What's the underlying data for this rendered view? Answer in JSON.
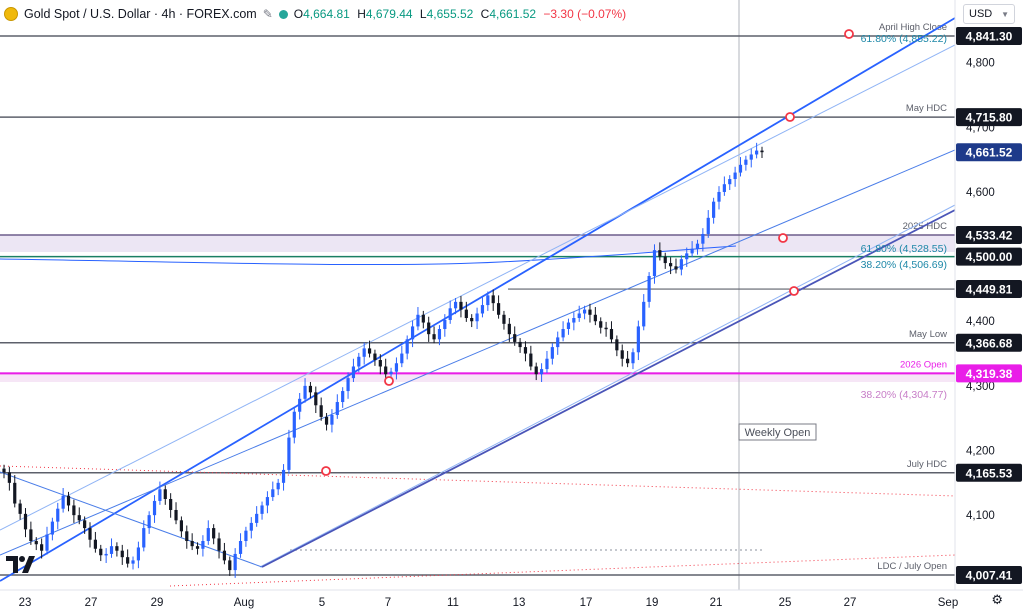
{
  "header": {
    "title": "Gold Spot / U.S. Dollar · 4h · FOREX.com",
    "open_label": "O",
    "open": "4,664.81",
    "high_label": "H",
    "high": "4,679.44",
    "low_label": "L",
    "low": "4,655.52",
    "close_label": "C",
    "close": "4,661.52",
    "change": "−3.30 (−0.07%)"
  },
  "currency": "USD",
  "colors": {
    "up": "#2962ff",
    "down": "#131722",
    "channel": "#2962ff",
    "channel_light": "#90b4f5",
    "level": "#787b86",
    "magenta": "#e91ee8",
    "zone": "#e6e0f0",
    "zone_pink": "#f6e6f6",
    "marker": "#f23645",
    "price_tag": "#131722",
    "fib_label": "#2962ff"
  },
  "chart_data": {
    "type": "candlestick",
    "instrument": "XAU/USD",
    "timeframe": "4h",
    "ylim": [
      3995,
      4895
    ],
    "yticks": [
      4100,
      4200,
      4300,
      4400,
      4500,
      4600,
      4700,
      4800
    ],
    "x_ticks": [
      "23",
      "27",
      "29",
      "Aug",
      "5",
      "7",
      "11",
      "13",
      "17",
      "19",
      "21",
      "25",
      "27",
      "Sep"
    ],
    "levels": [
      {
        "label": "April High Close",
        "price": 4841.3,
        "tag": "4,841.30"
      },
      {
        "label": "May HDC",
        "price": 4715.8,
        "tag": "4,715.80"
      },
      {
        "label": "2025 HDC",
        "price": 4533.42,
        "tag": "4,533.42"
      },
      {
        "label": "",
        "price": 4500.0,
        "tag": "4,500.00"
      },
      {
        "label": "",
        "price": 4449.81,
        "tag": "4,449.81"
      },
      {
        "label": "May Low",
        "price": 4366.68,
        "tag": "4,366.68"
      },
      {
        "label": "2026 Open",
        "price": 4319.38,
        "tag": "4,319.38"
      },
      {
        "label": "July HDC",
        "price": 4165.53,
        "tag": "4,165.53"
      },
      {
        "label": "LDC / July Open",
        "price": 4007.41,
        "tag": "4,007.41"
      }
    ],
    "fib_labels": [
      {
        "text": "61.80% (4,855.22)",
        "price": 4855.22
      },
      {
        "text": "61.80% (4,528.55)",
        "price": 4528.55
      },
      {
        "text": "38.20% (4,506.69)",
        "price": 4506.69
      },
      {
        "text": "38.20% (4,304.77)",
        "price": 4304.77
      }
    ],
    "last_price": {
      "price": 4661.52,
      "tag": "4,661.52"
    },
    "annotation": "Weekly Open",
    "close_series": [
      4166,
      4150,
      4118,
      4102,
      4078,
      4060,
      4055,
      4045,
      4070,
      4090,
      4110,
      4130,
      4115,
      4100,
      4092,
      4080,
      4062,
      4048,
      4038,
      4040,
      4052,
      4045,
      4035,
      4025,
      4030,
      4050,
      4080,
      4100,
      4122,
      4140,
      4125,
      4108,
      4092,
      4075,
      4060,
      4052,
      4048,
      4060,
      4080,
      4064,
      4045,
      4030,
      4015,
      4040,
      4060,
      4076,
      4088,
      4102,
      4115,
      4128,
      4140,
      4150,
      4170,
      4220,
      4260,
      4280,
      4300,
      4290,
      4270,
      4252,
      4240,
      4255,
      4275,
      4292,
      4312,
      4330,
      4345,
      4358,
      4350,
      4340,
      4330,
      4318,
      4322,
      4335,
      4350,
      4372,
      4392,
      4410,
      4398,
      4380,
      4372,
      4388,
      4402,
      4420,
      4430,
      4418,
      4405,
      4400,
      4412,
      4425,
      4440,
      4428,
      4410,
      4396,
      4380,
      4368,
      4360,
      4350,
      4330,
      4318,
      4326,
      4342,
      4360,
      4375,
      4388,
      4398,
      4405,
      4412,
      4418,
      4410,
      4400,
      4390,
      4388,
      4372,
      4355,
      4342,
      4335,
      4352,
      4392,
      4430,
      4470,
      4510,
      4500,
      4490,
      4485,
      4480,
      4496,
      4505,
      4512,
      4520,
      4535,
      4560,
      4585,
      4600,
      4612,
      4620,
      4630,
      4642,
      4650,
      4658,
      4664,
      4661.52
    ],
    "ohlc_last": {
      "open": 4664.81,
      "high": 4679.44,
      "low": 4655.52,
      "close": 4661.52,
      "change": -3.3,
      "change_pct": -0.07
    }
  }
}
